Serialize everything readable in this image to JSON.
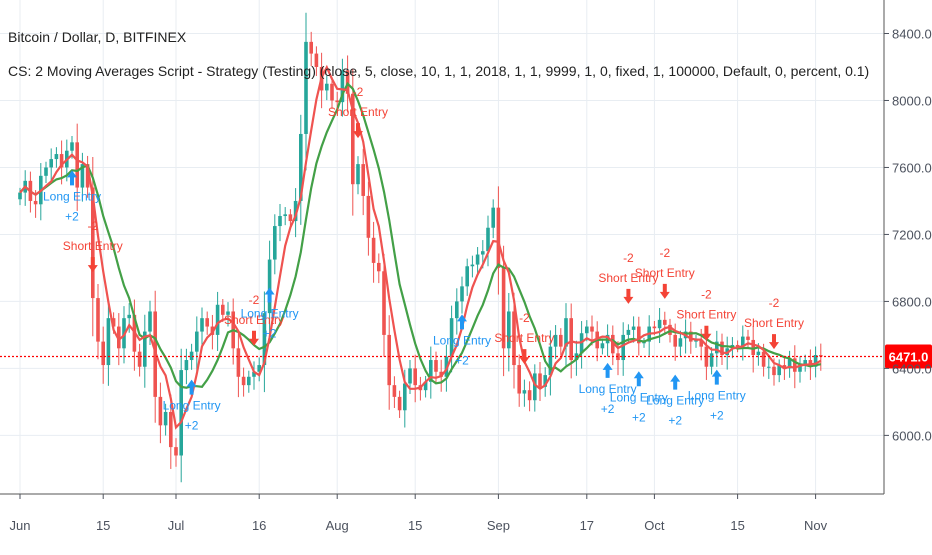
{
  "header": {
    "title": "Bitcoin / Dollar, D, BITFINEX",
    "strategy": "CS: 2 Moving Averages Script - Strategy (Testing) (close, 5, close, 10, 1, 1, 2018, 1, 1, 9999, 1, 0, fixed, 1, 100000, Default, 0, percent, 0.1)"
  },
  "colors": {
    "up": "#26a69a",
    "down": "#ef5350",
    "ma_fast": "#ef5350",
    "ma_slow": "#43a047",
    "long_arrow": "#2196f3",
    "short_arrow": "#f44336",
    "price_line": "#ff0000",
    "grid": "#e8edf2",
    "axis_text": "#4c525e"
  },
  "chart_data": {
    "type": "candlestick",
    "symbol": "BTCUSD",
    "exchange": "BITFINEX",
    "interval": "D",
    "ylim": [
      5650,
      8600
    ],
    "y_ticks": [
      6000,
      6400,
      6800,
      7200,
      7600,
      8000,
      8400
    ],
    "y_tick_labels": [
      "6000.0",
      "6400.0",
      "6800.0",
      "7200.0",
      "7600.0",
      "8000.0",
      "8400.0"
    ],
    "x_tick_labels": [
      "Jun",
      "15",
      "Jul",
      "16",
      "Aug",
      "15",
      "Sep",
      "17",
      "Oct",
      "15",
      "Nov"
    ],
    "x_tick_index": [
      0,
      16,
      30,
      46,
      61,
      76,
      92,
      109,
      122,
      138,
      153
    ],
    "grid": true,
    "last_price": 6471.0,
    "last_price_label": "6471.0",
    "closes": [
      7450,
      7520,
      7400,
      7380,
      7550,
      7600,
      7650,
      7680,
      7600,
      7700,
      7750,
      7480,
      7620,
      7480,
      6820,
      6560,
      6420,
      6700,
      6650,
      6520,
      6700,
      6720,
      6500,
      6410,
      6620,
      6740,
      6230,
      6060,
      6140,
      5930,
      5880,
      6390,
      6450,
      6500,
      6620,
      6700,
      6650,
      6600,
      6780,
      6720,
      6740,
      6520,
      6350,
      6300,
      6350,
      6380,
      6420,
      6730,
      7050,
      7250,
      7310,
      7320,
      7280,
      7400,
      7800,
      8350,
      8280,
      8200,
      8060,
      8100,
      8000,
      7990,
      8180,
      8040,
      7500,
      7620,
      7430,
      7180,
      7030,
      6980,
      6600,
      6300,
      6230,
      6150,
      6310,
      6400,
      6300,
      6270,
      6320,
      6450,
      6380,
      6350,
      6470,
      6700,
      6800,
      6890,
      7010,
      7020,
      7080,
      7100,
      7240,
      7360,
      7000,
      6520,
      6740,
      6420,
      6250,
      6270,
      6210,
      6370,
      6290,
      6360,
      6530,
      6600,
      6530,
      6700,
      6450,
      6490,
      6610,
      6650,
      6620,
      6520,
      6550,
      6600,
      6490,
      6450,
      6600,
      6630,
      6650,
      6550,
      6560,
      6650,
      6640,
      6690,
      6660,
      6600,
      6530,
      6580,
      6620,
      6560,
      6570,
      6530,
      6410,
      6490,
      6560,
      6480,
      6520,
      6540,
      6530,
      6590,
      6570,
      6480,
      6500,
      6410,
      6410,
      6360,
      6420,
      6400,
      6460,
      6380,
      6420,
      6450,
      6410,
      6480,
      6471
    ],
    "signals": [
      {
        "type": "long",
        "index": 10,
        "label": "Long Entry",
        "qty": "+2"
      },
      {
        "type": "short",
        "index": 14,
        "label": "Short Entry",
        "qty": "-2"
      },
      {
        "type": "long",
        "index": 33,
        "label": "Long Entry",
        "qty": "+2"
      },
      {
        "type": "short",
        "index": 45,
        "label": "Short Entry",
        "qty": "-2"
      },
      {
        "type": "long",
        "index": 48,
        "label": "Long Entry",
        "qty": "+2"
      },
      {
        "type": "short",
        "index": 65,
        "label": "Short Entry",
        "qty": "-2"
      },
      {
        "type": "long",
        "index": 85,
        "label": "Long Entry",
        "qty": "+2"
      },
      {
        "type": "short",
        "index": 97,
        "label": "Short Entry",
        "qty": "-2"
      },
      {
        "type": "long",
        "index": 113,
        "label": "Long Entry",
        "qty": "+2"
      },
      {
        "type": "short",
        "index": 117,
        "label": "Short Entry",
        "qty": "-2"
      },
      {
        "type": "long",
        "index": 119,
        "label": "Long Entry",
        "qty": "+2"
      },
      {
        "type": "short",
        "index": 124,
        "label": "Short Entry",
        "qty": "-2"
      },
      {
        "type": "long",
        "index": 126,
        "label": "Long Entry",
        "qty": "+2"
      },
      {
        "type": "short",
        "index": 132,
        "label": "Short Entry",
        "qty": "-2"
      },
      {
        "type": "long",
        "index": 134,
        "label": "Long Entry",
        "qty": "+2"
      },
      {
        "type": "short",
        "index": 145,
        "label": "Short Entry",
        "qty": "-2"
      }
    ]
  }
}
